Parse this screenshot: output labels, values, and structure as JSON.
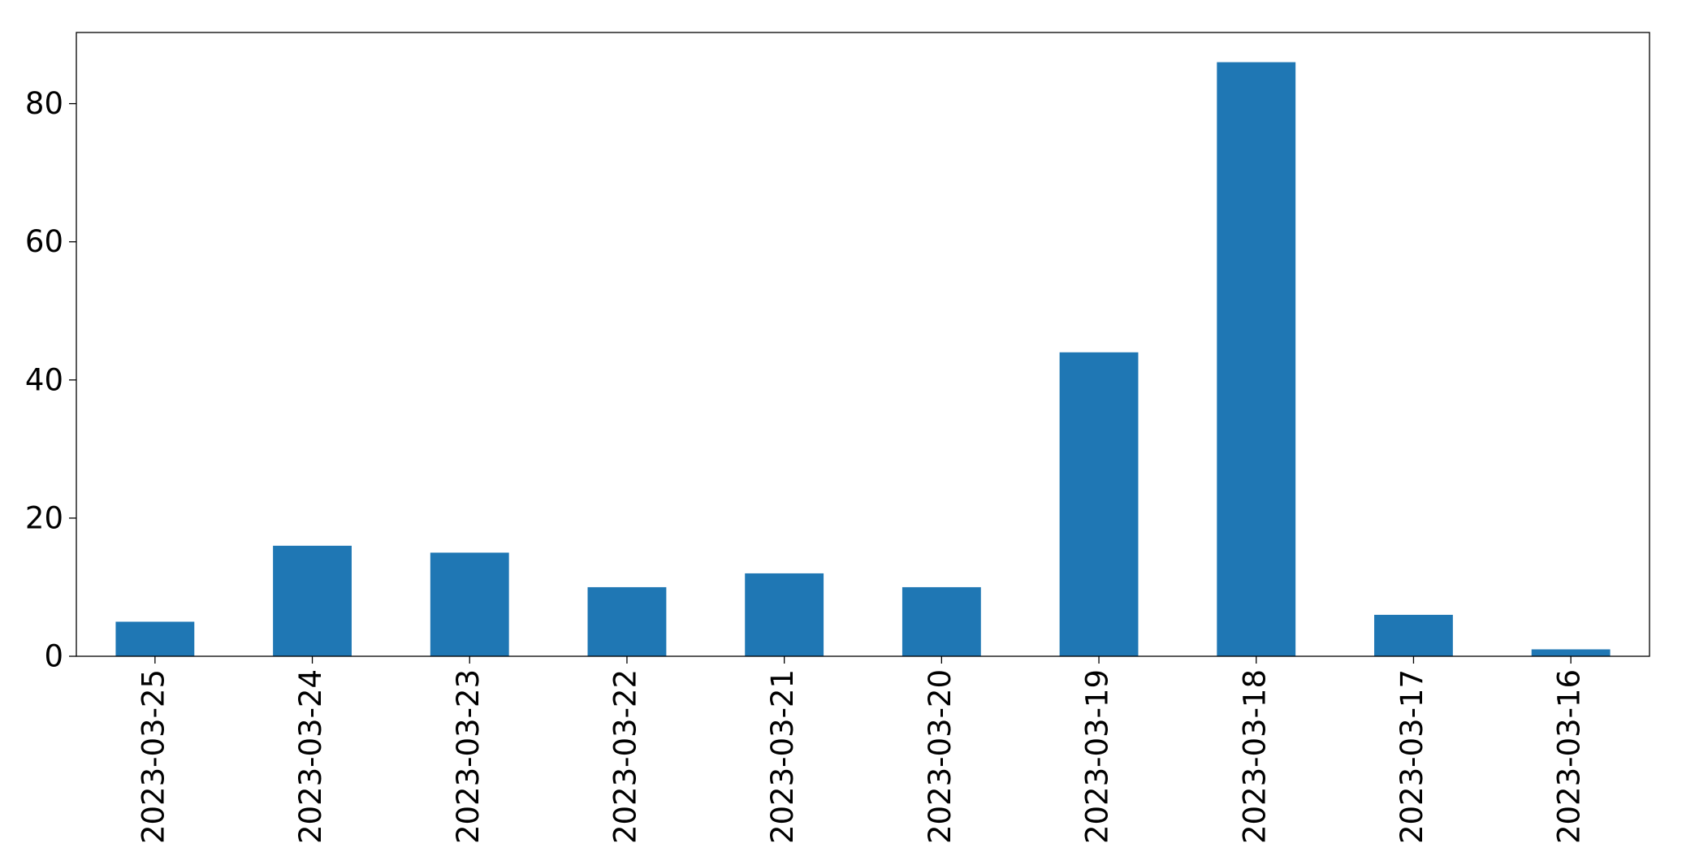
{
  "chart_data": {
    "type": "bar",
    "categories": [
      "2023-03-25",
      "2023-03-24",
      "2023-03-23",
      "2023-03-22",
      "2023-03-21",
      "2023-03-20",
      "2023-03-19",
      "2023-03-18",
      "2023-03-17",
      "2023-03-16"
    ],
    "values": [
      5,
      16,
      15,
      10,
      12,
      10,
      44,
      86,
      6,
      1
    ],
    "color": "#1f77b4",
    "ylim": [
      0,
      90.3
    ],
    "yticks": [
      0,
      20,
      40,
      60,
      80
    ],
    "grid": false
  }
}
